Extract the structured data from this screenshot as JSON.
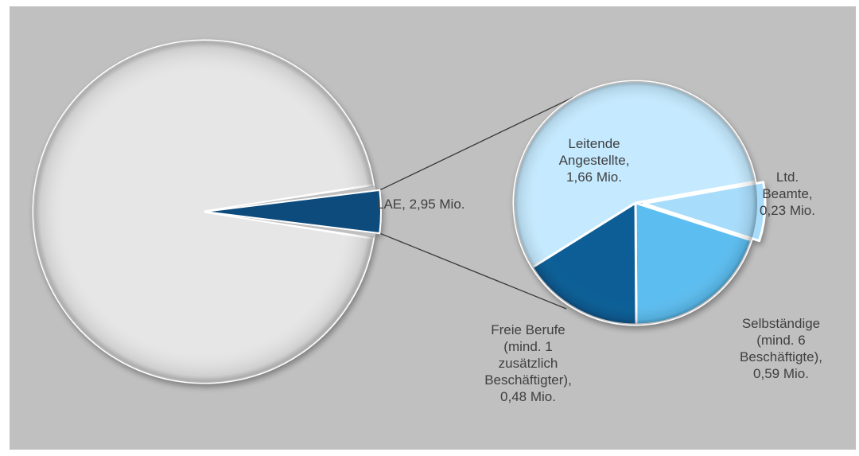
{
  "chart_data": {
    "type": "pie",
    "title": "",
    "main_pie": {
      "slices": [
        {
          "label": "",
          "value": null,
          "color": "#e6e6e6"
        },
        {
          "label": "LAE",
          "value": 2.95,
          "value_text": "LAE, 2,95 Mio.",
          "color": "#0e4c7c"
        }
      ]
    },
    "detail_pie": {
      "of": "LAE",
      "total": 2.95,
      "unit": "Mio.",
      "slices": [
        {
          "label": "Leitende Angestellte",
          "value": 1.66,
          "lines": [
            "Leitende",
            "Angestellte,",
            "1,66 Mio."
          ],
          "color": "#c5eaff"
        },
        {
          "label": "Ltd. Beamte",
          "value": 0.23,
          "lines": [
            "Ltd.",
            "Beamte,",
            "0,23 Mio."
          ],
          "color": "#a7dcfb"
        },
        {
          "label": "Selbständige (mind. 6 Beschäftigte)",
          "value": 0.59,
          "lines": [
            "Selbständige",
            "(mind. 6",
            "Beschäftigte),",
            "0,59 Mio."
          ],
          "color": "#5bbdf0"
        },
        {
          "label": "Freie Berufe (mind. 1 zusätzlich Beschäftigter)",
          "value": 0.48,
          "lines": [
            "Freie Berufe",
            "(mind. 1",
            "zusätzlich",
            "Beschäftigter),",
            "0,48 Mio."
          ],
          "color": "#0a5d96"
        }
      ]
    },
    "legend": "none",
    "grid": false
  }
}
